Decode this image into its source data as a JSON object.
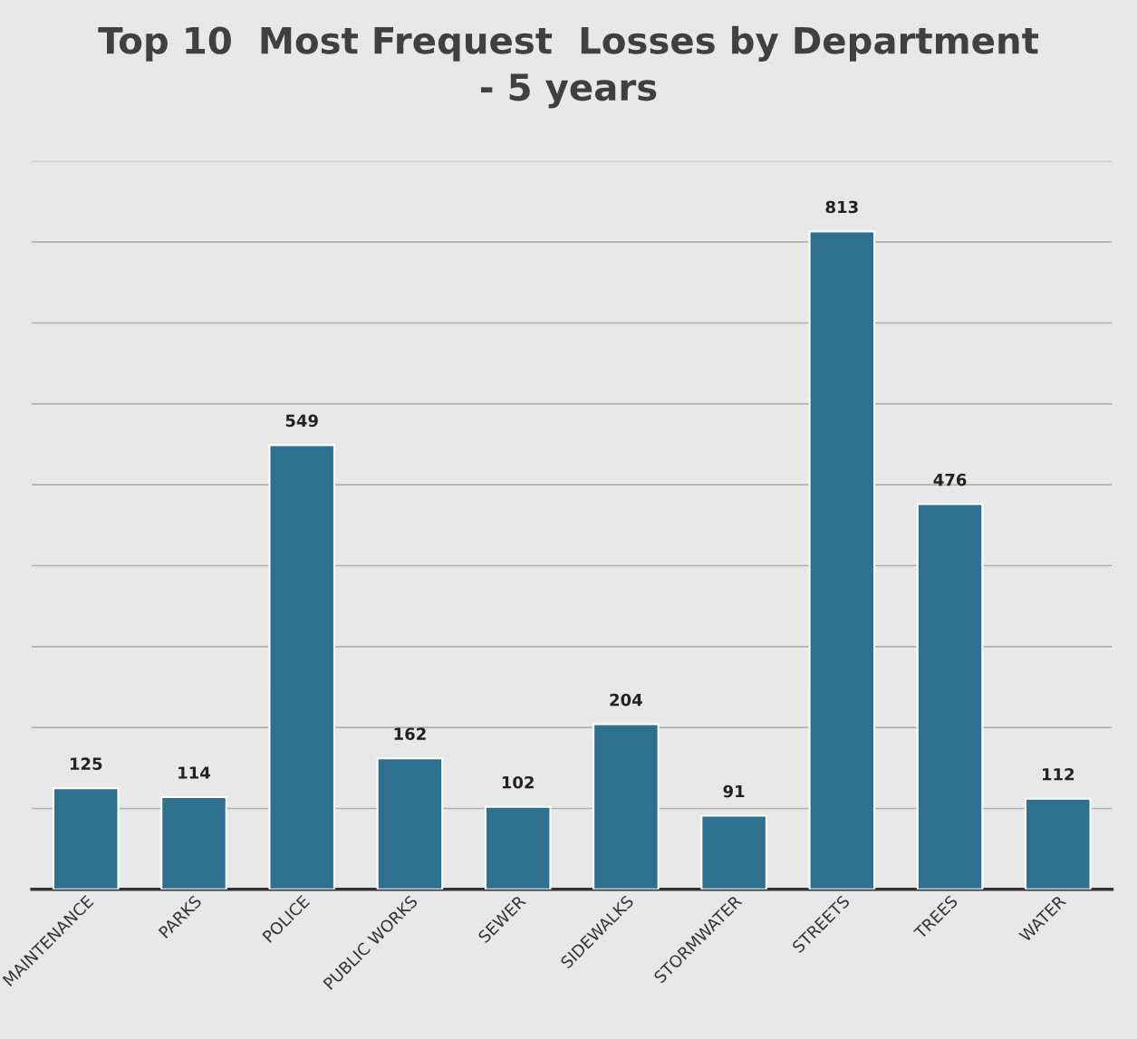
{
  "chart_data": {
    "type": "bar",
    "title": "Top 10  Most Frequest  Losses by Department\n- 5 years",
    "categories": [
      "MAINTENANCE",
      "PARKS",
      "POLICE",
      "PUBLIC WORKS",
      "SEWER",
      "SIDEWALKS",
      "STORMWATER",
      "STREETS",
      "TREES",
      "WATER"
    ],
    "values": [
      125,
      114,
      549,
      162,
      102,
      204,
      91,
      813,
      476,
      112
    ],
    "color": "#2e7090",
    "data_labels": true,
    "ylim": [
      0,
      900
    ],
    "yticks": [
      {
        "value": 0,
        "label": null
      },
      {
        "value": 100,
        "label": null
      },
      {
        "value": 200,
        "label": null
      },
      {
        "value": 300,
        "label": null
      },
      {
        "value": 400,
        "label": null
      },
      {
        "value": 500,
        "label": null
      },
      {
        "value": 600,
        "label": null
      },
      {
        "value": 700,
        "label": null
      },
      {
        "value": 800,
        "label": null
      },
      {
        "value": 900,
        "label": null
      }
    ],
    "grid": "y",
    "tick_labels": "x",
    "legend": false
  }
}
